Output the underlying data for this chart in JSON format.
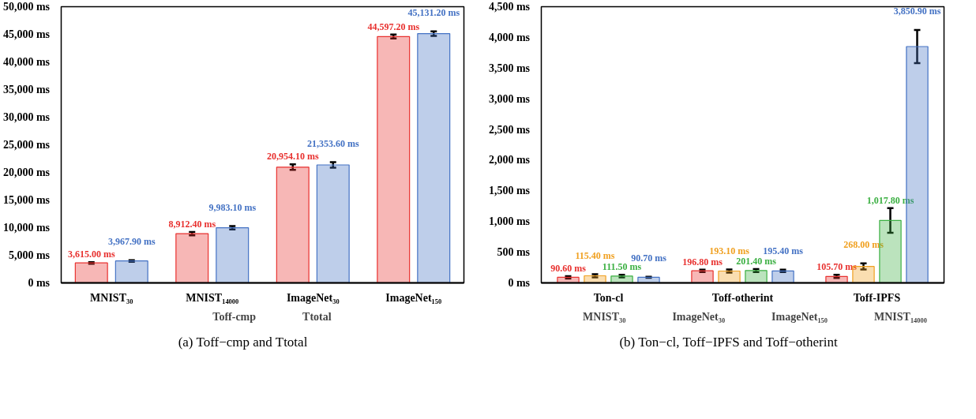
{
  "chart_data": [
    {
      "type": "bar",
      "title": "(a) Toff−cmp and Ttotal",
      "categories": [
        "MNIST₃₀",
        "MNIST₁₄₀₀₀",
        "ImageNet₃₀",
        "ImageNet₁₅₀"
      ],
      "series": [
        {
          "name": "Toff-cmp",
          "color": "#e8312f",
          "values": [
            3615.0,
            8912.4,
            20954.1,
            44597.2
          ],
          "errors": [
            150,
            300,
            500,
            350
          ],
          "value_labels": [
            "3,615.00 ms",
            "8,912.40 ms",
            "20,954.10 ms",
            "44,597.20 ms"
          ]
        },
        {
          "name": "Ttotal",
          "color": "#4472c4",
          "values": [
            3967.9,
            9983.1,
            21353.6,
            45131.2
          ],
          "errors": [
            150,
            300,
            500,
            400
          ],
          "value_labels": [
            "3,967.90 ms",
            "9,983.10 ms",
            "21,353.60 ms",
            "45,131.20 ms"
          ]
        }
      ],
      "ylim": [
        0,
        50000
      ],
      "yticks": [
        {
          "value": 0,
          "label": "0  ms"
        },
        {
          "value": 5000,
          "label": "5,000  ms"
        },
        {
          "value": 10000,
          "label": "10,000  ms"
        },
        {
          "value": 15000,
          "label": "15,000  ms"
        },
        {
          "value": 20000,
          "label": "20,000  ms"
        },
        {
          "value": 25000,
          "label": "25,000  ms"
        },
        {
          "value": 30000,
          "label": "30,000  ms"
        },
        {
          "value": 35000,
          "label": "35,000  ms"
        },
        {
          "value": 40000,
          "label": "40,000  ms"
        },
        {
          "value": 45000,
          "label": "45,000  ms"
        },
        {
          "value": 50000,
          "label": "50,000  ms"
        }
      ],
      "legend": "bottom",
      "grid": false
    },
    {
      "type": "bar",
      "title": "(b) Ton−cl, Toff−IPFS and Toff−otherint",
      "categories": [
        "Ton-cl",
        "Toff-otherint",
        "Toff-IPFS"
      ],
      "series": [
        {
          "name": "MNIST₃₀",
          "color": "#e8312f",
          "values": [
            90.6,
            196.8,
            105.7
          ],
          "errors": [
            20,
            20,
            25
          ],
          "value_labels": [
            "90.60 ms",
            "196.80 ms",
            "105.70 ms"
          ]
        },
        {
          "name": "ImageNet₃₀",
          "color": "#f0a020",
          "values": [
            115.4,
            193.1,
            268.0
          ],
          "errors": [
            25,
            25,
            50
          ],
          "value_labels": [
            "115.40 ms",
            "193.10 ms",
            "268.00 ms"
          ]
        },
        {
          "name": "ImageNet₁₅₀",
          "color": "#3cb043",
          "values": [
            111.5,
            201.4,
            1017.8
          ],
          "errors": [
            20,
            25,
            200
          ],
          "value_labels": [
            "111.50 ms",
            "201.40 ms",
            "1,017.80 ms"
          ]
        },
        {
          "name": "MNIST₁₄₀₀₀",
          "color": "#4472c4",
          "values": [
            90.7,
            195.4,
            3850.9
          ],
          "errors": [
            8,
            20,
            270
          ],
          "value_labels": [
            "90.70 ms",
            "195.40 ms",
            "3,850.90 ms"
          ]
        }
      ],
      "ylim": [
        0,
        4500
      ],
      "yticks": [
        {
          "value": 0,
          "label": "0  ms"
        },
        {
          "value": 500,
          "label": "500  ms"
        },
        {
          "value": 1000,
          "label": "1,000  ms"
        },
        {
          "value": 1500,
          "label": "1,500  ms"
        },
        {
          "value": 2000,
          "label": "2,000  ms"
        },
        {
          "value": 2500,
          "label": "2,500  ms"
        },
        {
          "value": 3000,
          "label": "3,000  ms"
        },
        {
          "value": 3500,
          "label": "3,500  ms"
        },
        {
          "value": 4000,
          "label": "4,000  ms"
        },
        {
          "value": 4500,
          "label": "4,500  ms"
        }
      ],
      "legend": "bottom",
      "grid": false
    }
  ]
}
